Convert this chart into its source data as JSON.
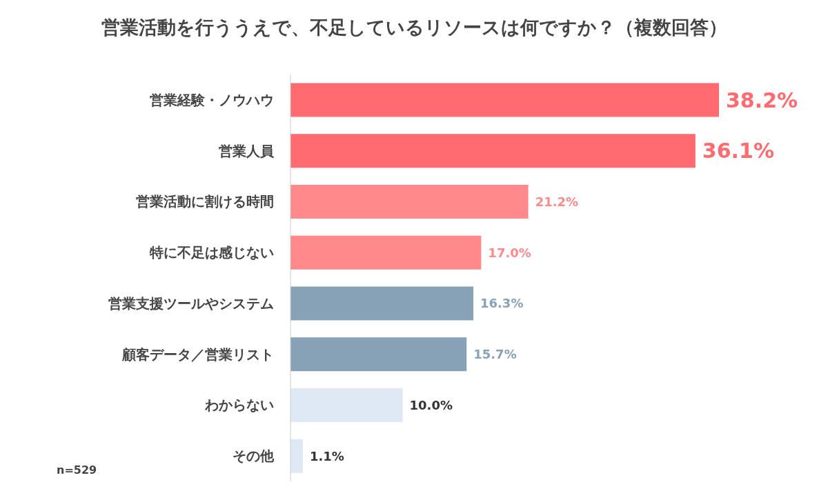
{
  "chart_data": {
    "type": "bar",
    "orientation": "horizontal",
    "title": "営業活動を行ううえで、不足しているリソースは何ですか？（複数回答）",
    "categories": [
      "営業経験・ノウハウ",
      "営業人員",
      "営業活動に割ける時間",
      "特に不足は感じない",
      "営業支援ツールやシステム",
      "顧客データ／営業リスト",
      "わからない",
      "その他"
    ],
    "values": [
      38.2,
      36.1,
      21.2,
      17.0,
      16.3,
      15.7,
      10.0,
      1.1
    ],
    "colors": [
      "#ff6b6e",
      "#ff6b6e",
      "#ff898b",
      "#ff898b",
      "#87a2b7",
      "#87a2b7",
      "#dfe8f5",
      "#dfe8f5"
    ],
    "value_labels": [
      "38.2%",
      "36.1%",
      "21.2%",
      "17.0%",
      "16.3%",
      "15.7%",
      "10.0%",
      "1.1%"
    ],
    "annotations": [
      "n=529"
    ]
  }
}
